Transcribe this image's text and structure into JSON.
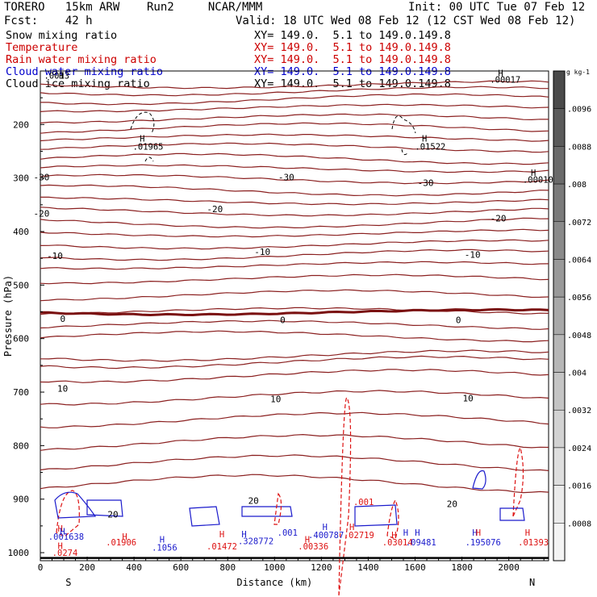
{
  "header": {
    "model": "TORERO   15km ARW    Run2     NCAR/MMM",
    "init": "Init: 00 UTC Tue 07 Feb 12",
    "fcst": "Fcst:    42 h",
    "valid": "Valid: 18 UTC Wed 08 Feb 12 (12 CST Wed 08 Feb 12)"
  },
  "fields": [
    {
      "label": "Snow mixing ratio",
      "xy": "XY= 149.0.  5.1 to 149.0.149.8",
      "color": "#000000",
      "xy_color": "#000000"
    },
    {
      "label": "Temperature",
      "xy": "XY= 149.0.  5.1 to 149.0.149.8",
      "color": "#cc0000",
      "xy_color": "#cc0000"
    },
    {
      "label": "Rain water mixing ratio",
      "xy": "XY= 149.0.  5.1 to 149.0.149.8",
      "color": "#cc0000",
      "xy_color": "#cc0000"
    },
    {
      "label": "Cloud water mixing ratio",
      "xy": "XY= 149.0.  5.1 to 149.0.149.8",
      "color": "#0000cc",
      "xy_color": "#0000cc"
    },
    {
      "label": "Cloud ice mixing ratio",
      "xy": "XY= 149.0.  5.1 to 149.0.149.8",
      "color": "#000000",
      "xy_color": "#000000"
    }
  ],
  "chart_data": {
    "type": "contour cross-section",
    "xlabel": "Distance (km)",
    "ylabel": "Pressure (hPa)",
    "xlim": [
      0,
      2170
    ],
    "ylim": [
      1015,
      100
    ],
    "x_ticks": [
      0,
      200,
      400,
      600,
      800,
      1000,
      1200,
      1400,
      1600,
      1800,
      2000
    ],
    "y_ticks": [
      200,
      300,
      400,
      500,
      600,
      700,
      800,
      900,
      1000
    ],
    "endpoint_left": "S",
    "endpoint_right": "N",
    "colorbar": {
      "unit_label": "g kg-1",
      "ticks": [
        ".0096",
        ".0088",
        ".008",
        ".0072",
        ".0064",
        ".0056",
        ".0048",
        ".004",
        ".0032",
        ".0024",
        ".0016",
        ".0008"
      ],
      "shades": [
        "#4a4a4a",
        "#5a5a5a",
        "#6a6a6a",
        "#7a7a7a",
        "#8a8a8a",
        "#999999",
        "#a8a8a8",
        "#b6b6b6",
        "#c4c4c4",
        "#d2d2d2",
        "#dedede",
        "#eaeaea",
        "#f4f4f4"
      ]
    },
    "colors": {
      "temperature": "#8b2020",
      "zero_isotherm": "#7a1010",
      "rain": "#dd1111",
      "cloud_water": "#1a1acc",
      "snow": "#000000",
      "label": "#000000"
    },
    "temperature_contours": {
      "interval": 5,
      "labels": [
        {
          "v": "-30",
          "x": 5,
          "p": 298
        },
        {
          "v": "-30",
          "x": 1050,
          "p": 298
        },
        {
          "v": "-30",
          "x": 1645,
          "p": 309
        },
        {
          "v": "-20",
          "x": 5,
          "p": 366
        },
        {
          "v": "-20",
          "x": 745,
          "p": 358
        },
        {
          "v": "-20",
          "x": 1955,
          "p": 375
        },
        {
          "v": "-10",
          "x": 62,
          "p": 445
        },
        {
          "v": "-10",
          "x": 948,
          "p": 438
        },
        {
          "v": "-10",
          "x": 1845,
          "p": 443
        },
        {
          "v": "0",
          "x": 96,
          "p": 563
        },
        {
          "v": "0",
          "x": 1035,
          "p": 565
        },
        {
          "v": "0",
          "x": 1785,
          "p": 565
        },
        {
          "v": "10",
          "x": 95,
          "p": 693
        },
        {
          "v": "10",
          "x": 1005,
          "p": 713
        },
        {
          "v": "10",
          "x": 1826,
          "p": 711
        },
        {
          "v": "20",
          "x": 310,
          "p": 928
        },
        {
          "v": "20",
          "x": 910,
          "p": 903
        },
        {
          "v": "20",
          "x": 1758,
          "p": 909
        }
      ]
    },
    "extrema": [
      {
        "text": "H",
        "x": 1965,
        "p": 104,
        "color": "#000000"
      },
      {
        "text": ".00017",
        "x": 1985,
        "p": 116,
        "color": "#000000"
      },
      {
        "text": "H",
        "x": 435,
        "p": 226,
        "color": "#000000"
      },
      {
        "text": ".01965",
        "x": 460,
        "p": 241,
        "color": "#000000"
      },
      {
        "text": "H",
        "x": 1640,
        "p": 226,
        "color": "#000000"
      },
      {
        "text": ".01522",
        "x": 1665,
        "p": 241,
        "color": "#000000"
      },
      {
        "text": "H",
        "x": 2105,
        "p": 290,
        "color": "#000000"
      },
      {
        "text": ".00010",
        "x": 2125,
        "p": 303,
        "color": "#000000"
      },
      {
        "text": "H",
        "x": 90,
        "p": 108,
        "color": "#000000"
      },
      {
        "text": ".0013",
        "x": 70,
        "p": 108,
        "color": "#000000"
      },
      {
        "text": ".001",
        "x": 1380,
        "p": 905,
        "color": "#dd1111"
      },
      {
        "text": "H",
        "x": 85,
        "p": 955,
        "color": "#dd1111"
      },
      {
        "text": "H",
        "x": 95,
        "p": 960,
        "color": "#1a1acc"
      },
      {
        "text": ".001638",
        "x": 110,
        "p": 970,
        "color": "#1a1acc"
      },
      {
        "text": "H",
        "x": 85,
        "p": 987,
        "color": "#dd1111"
      },
      {
        "text": ".0274",
        "x": 105,
        "p": 1000,
        "color": "#dd1111"
      },
      {
        "text": "H",
        "x": 360,
        "p": 970,
        "color": "#dd1111"
      },
      {
        "text": ".01906",
        "x": 345,
        "p": 980,
        "color": "#dd1111"
      },
      {
        "text": "H",
        "x": 520,
        "p": 975,
        "color": "#1a1acc"
      },
      {
        "text": ".1056",
        "x": 530,
        "p": 990,
        "color": "#1a1acc"
      },
      {
        "text": "H",
        "x": 775,
        "p": 965,
        "color": "#dd1111"
      },
      {
        "text": ".01472",
        "x": 775,
        "p": 988,
        "color": "#dd1111"
      },
      {
        "text": "H",
        "x": 870,
        "p": 965,
        "color": "#1a1acc"
      },
      {
        "text": ".328772",
        "x": 920,
        "p": 978,
        "color": "#1a1acc"
      },
      {
        "text": ".001",
        "x": 1055,
        "p": 962,
        "color": "#1a1acc"
      },
      {
        "text": "H",
        "x": 1140,
        "p": 975,
        "color": "#dd1111"
      },
      {
        "text": ".00336",
        "x": 1165,
        "p": 988,
        "color": "#dd1111"
      },
      {
        "text": "H",
        "x": 1215,
        "p": 952,
        "color": "#1a1acc"
      },
      {
        "text": ".400787",
        "x": 1220,
        "p": 967,
        "color": "#1a1acc"
      },
      {
        "text": "H",
        "x": 1330,
        "p": 952,
        "color": "#dd1111"
      },
      {
        "text": ".02719",
        "x": 1360,
        "p": 967,
        "color": "#dd1111"
      },
      {
        "text": "H",
        "x": 1510,
        "p": 967,
        "color": "#dd1111"
      },
      {
        "text": ".03014",
        "x": 1525,
        "p": 980,
        "color": "#dd1111"
      },
      {
        "text": "H",
        "x": 1560,
        "p": 962,
        "color": "#1a1acc"
      },
      {
        "text": "H",
        "x": 1610,
        "p": 962,
        "color": "#1a1acc"
      },
      {
        "text": ".09481",
        "x": 1625,
        "p": 980,
        "color": "#1a1acc"
      },
      {
        "text": "H",
        "x": 1855,
        "p": 962,
        "color": "#1a1acc"
      },
      {
        "text": "H",
        "x": 1870,
        "p": 962,
        "color": "#dd1111"
      },
      {
        "text": ".195076",
        "x": 1890,
        "p": 980,
        "color": "#1a1acc"
      },
      {
        "text": "H",
        "x": 2080,
        "p": 962,
        "color": "#dd1111"
      },
      {
        "text": ".01393",
        "x": 2105,
        "p": 980,
        "color": "#dd1111"
      }
    ]
  }
}
